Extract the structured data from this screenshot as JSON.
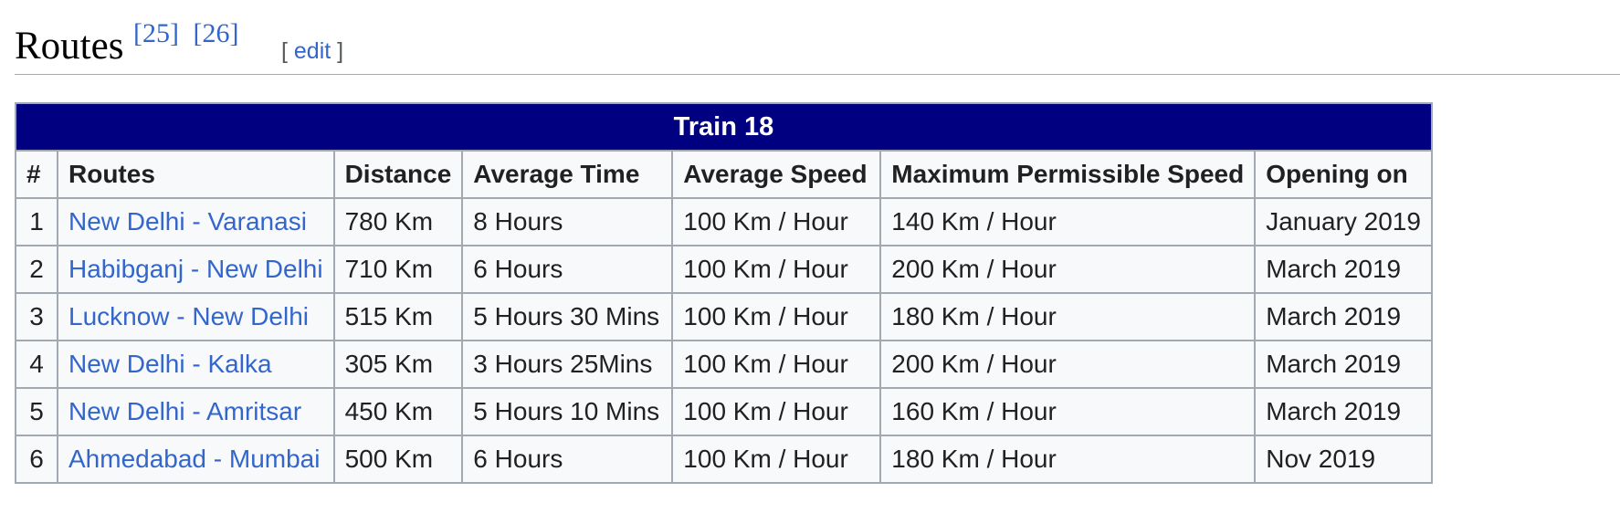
{
  "section": {
    "title": "Routes",
    "refs": [
      "[25]",
      "[26]"
    ],
    "edit": {
      "open": "[ ",
      "label": "edit",
      "close": " ]"
    }
  },
  "table": {
    "caption": "Train 18",
    "headers": [
      "#",
      "Routes",
      "Distance",
      "Average Time",
      "Average Speed",
      "Maximum Permissible Speed",
      "Opening on"
    ],
    "rows": [
      [
        "1",
        "New Delhi - Varanasi",
        "780 Km",
        "8 Hours",
        "100 Km / Hour",
        "140 Km / Hour",
        "January 2019"
      ],
      [
        "2",
        "Habibganj - New Delhi",
        "710 Km",
        "6 Hours",
        "100 Km / Hour",
        "200 Km / Hour",
        "March 2019"
      ],
      [
        "3",
        "Lucknow - New Delhi",
        "515 Km",
        "5 Hours 30 Mins",
        "100 Km / Hour",
        "180 Km / Hour",
        "March 2019"
      ],
      [
        "4",
        "New Delhi - Kalka",
        "305 Km",
        "3 Hours 25Mins",
        "100 Km / Hour",
        "200 Km / Hour",
        "March 2019"
      ],
      [
        "5",
        "New Delhi - Amritsar",
        "450 Km",
        "5 Hours 10 Mins",
        "100 Km / Hour",
        "160 Km / Hour",
        "March 2019"
      ],
      [
        "6",
        "Ahmedabad - Mumbai",
        "500 Km",
        "6 Hours",
        "100 Km / Hour",
        "180 Km / Hour",
        "Nov 2019"
      ]
    ]
  },
  "colors": {
    "caption_bg": "#000080",
    "link": "#3366cc",
    "table_bg": "#f8f9fa",
    "border": "#a2a9b1"
  }
}
